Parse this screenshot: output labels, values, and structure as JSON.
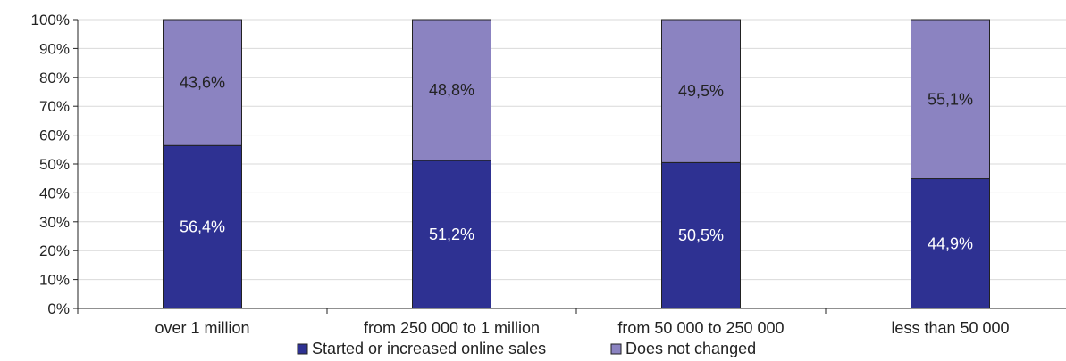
{
  "chart_data": {
    "type": "bar",
    "stacked": true,
    "categories": [
      "over 1 million",
      "from 250 000 to 1 million",
      "from 50 000 to 250 000",
      "less than 50 000"
    ],
    "series": [
      {
        "name": "Started or increased online sales",
        "values": [
          56.4,
          51.2,
          50.5,
          44.9
        ],
        "labels": [
          "56,4%",
          "51,2%",
          "50,5%",
          "44,9%"
        ],
        "color": "#2e3192"
      },
      {
        "name": "Does not changed",
        "values": [
          43.6,
          48.8,
          49.5,
          55.1
        ],
        "labels": [
          "43,6%",
          "48,8%",
          "49,5%",
          "55,1%"
        ],
        "color": "#8b83c1"
      }
    ],
    "ylim": [
      0,
      100
    ],
    "yticks": [
      "0%",
      "10%",
      "20%",
      "30%",
      "40%",
      "50%",
      "60%",
      "70%",
      "80%",
      "90%",
      "100%"
    ],
    "grid": true,
    "legend": "bottom"
  }
}
